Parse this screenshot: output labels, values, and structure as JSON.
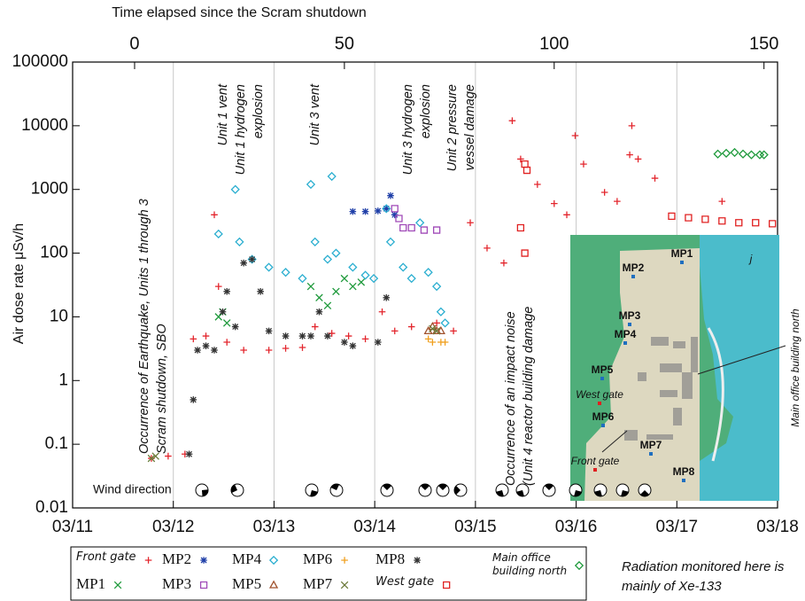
{
  "chart_data": {
    "type": "scatter",
    "title": "Time elapsed since the Scram shutdown",
    "ylabel": "Air dose rate μSv/h",
    "yscale": "log",
    "ylim": [
      0.01,
      100000
    ],
    "yticks": [
      0.01,
      0.1,
      1,
      10,
      100,
      1000,
      10000,
      100000
    ],
    "xlim": [
      -14.77,
      153.23
    ],
    "xticks": [
      {
        "value": -14.77,
        "label": "03/11"
      },
      {
        "value": 9.23,
        "label": "03/12"
      },
      {
        "value": 33.23,
        "label": "03/13"
      },
      {
        "value": 57.23,
        "label": "03/14"
      },
      {
        "value": 81.23,
        "label": "03/15"
      },
      {
        "value": 105.23,
        "label": "03/16"
      },
      {
        "value": 129.23,
        "label": "03/17"
      },
      {
        "value": 153.23,
        "label": "03/18"
      }
    ],
    "x2ticks": [
      0,
      50,
      100,
      150
    ],
    "grid": "x",
    "series": [
      {
        "name": "Front gate",
        "marker": "plus",
        "color": "#e3262d",
        "x": [
          4,
          8,
          12,
          14,
          17,
          19,
          20,
          22,
          26,
          32,
          36,
          40,
          43,
          47,
          51,
          55,
          59,
          62,
          66,
          72,
          76,
          80,
          84,
          88,
          90,
          92,
          96,
          100,
          103,
          105,
          107,
          112,
          115,
          118,
          118.5,
          120,
          124,
          140
        ],
        "values": [
          0.06,
          0.065,
          0.07,
          4.5,
          5,
          400,
          30,
          4,
          3,
          3,
          3.2,
          3.3,
          7,
          5.5,
          5,
          4.5,
          12,
          6,
          7,
          8,
          6,
          300,
          120,
          70,
          12000,
          3000,
          1200,
          600,
          400,
          7000,
          2500,
          900,
          650,
          3500,
          10000,
          3000,
          1500,
          650
        ]
      },
      {
        "name": "MP1",
        "marker": "x",
        "color": "#1f9a3c",
        "x": [
          20,
          21,
          22,
          42,
          44,
          46,
          48,
          50,
          52,
          54
        ],
        "values": [
          10,
          12,
          8,
          30,
          20,
          15,
          25,
          40,
          30,
          35
        ]
      },
      {
        "name": "MP2",
        "marker": "star",
        "color": "#1f3fa8",
        "x": [
          52,
          55,
          58,
          60,
          61,
          62
        ],
        "values": [
          450,
          450,
          460,
          500,
          800,
          400
        ]
      },
      {
        "name": "MP3",
        "marker": "square",
        "color": "#a04ab8",
        "x": [
          62,
          63,
          64,
          66,
          69,
          72
        ],
        "values": [
          500,
          350,
          250,
          250,
          230,
          230
        ]
      },
      {
        "name": "MP4",
        "marker": "diamond",
        "color": "#2aaed0",
        "x": [
          20,
          24,
          25,
          28,
          32,
          36,
          40,
          42,
          43,
          46,
          47,
          48,
          52,
          55,
          57,
          60,
          61,
          64,
          66,
          68,
          70,
          72,
          73,
          74
        ],
        "values": [
          200,
          1000,
          150,
          80,
          60,
          50,
          40,
          1200,
          150,
          80,
          1600,
          100,
          60,
          45,
          40,
          500,
          150,
          60,
          40,
          300,
          50,
          30,
          12,
          8
        ]
      },
      {
        "name": "MP5",
        "marker": "triangle",
        "color": "#a0522d",
        "x": [
          70,
          71,
          72,
          73
        ],
        "values": [
          6,
          7,
          6,
          6
        ]
      },
      {
        "name": "MP6",
        "marker": "plus",
        "color": "#f0a020",
        "x": [
          70,
          71,
          73,
          74
        ],
        "values": [
          4.5,
          4,
          4,
          4
        ]
      },
      {
        "name": "MP7",
        "marker": "x",
        "color": "#6b7a3a",
        "x": [
          4,
          5,
          71,
          72
        ],
        "values": [
          0.06,
          0.065,
          6.5,
          6
        ]
      },
      {
        "name": "MP8",
        "marker": "star",
        "color": "#333333",
        "x": [
          13,
          14,
          15,
          17,
          19,
          21,
          22,
          24,
          26,
          28,
          30,
          32,
          36,
          40,
          42,
          44,
          46,
          50,
          52,
          58,
          60
        ],
        "values": [
          0.07,
          0.5,
          3,
          3.5,
          3,
          12,
          25,
          7,
          70,
          80,
          25,
          6,
          5,
          5,
          5,
          12,
          5,
          4,
          3.5,
          4,
          20
        ]
      },
      {
        "name": "West gate",
        "marker": "square",
        "color": "#e02020",
        "x": [
          93,
          93.5,
          92,
          93,
          128,
          132,
          136,
          140,
          144,
          148,
          152
        ],
        "values": [
          2500,
          2000,
          250,
          100,
          380,
          360,
          340,
          320,
          300,
          300,
          290
        ]
      },
      {
        "name": "Main office building north",
        "marker": "diamond",
        "color": "#1f9a3c",
        "x": [
          139,
          141,
          143,
          145,
          147,
          149,
          150
        ],
        "values": [
          3600,
          3700,
          3800,
          3600,
          3500,
          3500,
          3500
        ]
      }
    ],
    "annotations": [
      {
        "lines": [
          "Occurrence of Earthquake, Units 1 through 3",
          "Scram shutdown, SBO"
        ]
      },
      {
        "lines": [
          "Unit 1 vent"
        ]
      },
      {
        "lines": [
          "Unit 1 hydrogen",
          "explosion"
        ]
      },
      {
        "lines": [
          "Unit 3 vent"
        ]
      },
      {
        "lines": [
          "Unit 3 hydrogen",
          "explosion"
        ]
      },
      {
        "lines": [
          "Unit 2 pressure",
          "vessel damage"
        ]
      },
      {
        "lines": [
          "Occurrence of an impact noise",
          "(Unit 4 reactor building damage"
        ]
      }
    ],
    "wind_label": "Wind direction",
    "map_labels": [
      "MP1",
      "MP2",
      "MP3",
      "MP4",
      "MP5",
      "West gate",
      "MP6",
      "Front gate",
      "MP7",
      "MP8",
      "j"
    ],
    "map_building_label": "Main office building north",
    "note": [
      "Radiation monitored here is",
      "mainly of Xe-133"
    ]
  }
}
